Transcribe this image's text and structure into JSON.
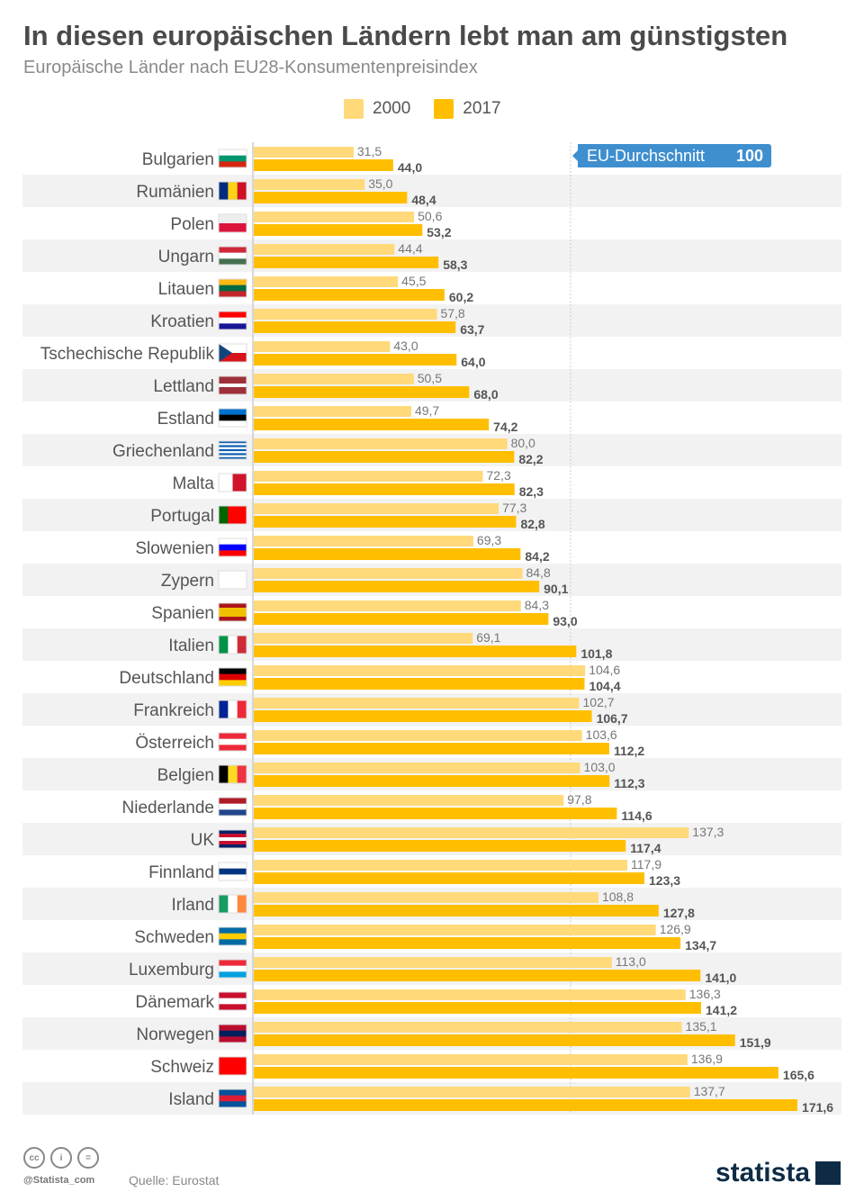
{
  "chart_data": {
    "type": "bar",
    "orientation": "horizontal",
    "title": "In diesen europäischen Ländern lebt man am günstigsten",
    "subtitle": "Europäische Länder nach EU28-Konsumentenpreisindex",
    "xlim": [
      0,
      175
    ],
    "grid": false,
    "legend_placement": "top",
    "reference_line": {
      "label": "EU-Durchschnitt",
      "value": 100,
      "value_label": "100"
    },
    "categories": [
      "Bulgarien",
      "Rumänien",
      "Polen",
      "Ungarn",
      "Litauen",
      "Kroatien",
      "Tschechische Republik",
      "Lettland",
      "Estland",
      "Griechenland",
      "Malta",
      "Portugal",
      "Slowenien",
      "Zypern",
      "Spanien",
      "Italien",
      "Deutschland",
      "Frankreich",
      "Österreich",
      "Belgien",
      "Niederlande",
      "UK",
      "Finnland",
      "Irland",
      "Schweden",
      "Luxemburg",
      "Dänemark",
      "Norwegen",
      "Schweiz",
      "Island"
    ],
    "series": [
      {
        "name": "2000",
        "color": "#ffd97a",
        "values": [
          31.5,
          35.0,
          50.6,
          44.4,
          45.5,
          57.8,
          43.0,
          50.5,
          49.7,
          80.0,
          72.3,
          77.3,
          69.3,
          84.8,
          84.3,
          69.1,
          104.6,
          102.7,
          103.6,
          103.0,
          97.8,
          137.3,
          117.9,
          108.8,
          126.9,
          113.0,
          136.3,
          135.1,
          136.9,
          137.7
        ],
        "labels": [
          "31,5",
          "35,0",
          "50,6",
          "44,4",
          "45,5",
          "57,8",
          "43,0",
          "50,5",
          "49,7",
          "80,0",
          "72,3",
          "77,3",
          "69,3",
          "84,8",
          "84,3",
          "69,1",
          "104,6",
          "102,7",
          "103,6",
          "103,0",
          "97,8",
          "137,3",
          "117,9",
          "108,8",
          "126,9",
          "113,0",
          "136,3",
          "135,1",
          "136,9",
          "137,7"
        ]
      },
      {
        "name": "2017",
        "color": "#ffbf00",
        "values": [
          44.0,
          48.4,
          53.2,
          58.3,
          60.2,
          63.7,
          64.0,
          68.0,
          74.2,
          82.2,
          82.3,
          82.8,
          84.2,
          90.1,
          93.0,
          101.8,
          104.4,
          106.7,
          112.2,
          112.3,
          114.6,
          117.4,
          123.3,
          127.8,
          134.7,
          141.0,
          141.2,
          151.9,
          165.6,
          171.6
        ],
        "labels": [
          "44,0",
          "48,4",
          "53,2",
          "58,3",
          "60,2",
          "63,7",
          "64,0",
          "68,0",
          "74,2",
          "82,2",
          "82,3",
          "82,8",
          "84,2",
          "90,1",
          "93,0",
          "101,8",
          "104,4",
          "106,7",
          "112,2",
          "112,3",
          "114,6",
          "117,4",
          "123,3",
          "127,8",
          "134,7",
          "141,0",
          "141,2",
          "151,9",
          "165,6",
          "171,6"
        ]
      }
    ]
  },
  "flags": [
    {
      "d": "h",
      "c": [
        "#ffffff",
        "#00966e",
        "#d62612"
      ]
    },
    {
      "d": "v",
      "c": [
        "#002b7f",
        "#fcd116",
        "#ce1126"
      ]
    },
    {
      "d": "h",
      "c": [
        "#eeeeee",
        "#dc143c"
      ]
    },
    {
      "d": "h",
      "c": [
        "#ce2939",
        "#ffffff",
        "#477050"
      ]
    },
    {
      "d": "h",
      "c": [
        "#fdb913",
        "#006a44",
        "#c1272d"
      ]
    },
    {
      "d": "h",
      "c": [
        "#ff0000",
        "#ffffff",
        "#171796"
      ]
    },
    {
      "d": "h",
      "c": [
        "#ffffff",
        "#d7141a"
      ],
      "tri": "#11457e"
    },
    {
      "d": "h",
      "c": [
        "#9e3039",
        "#9e3039",
        "#ffffff",
        "#9e3039",
        "#9e3039"
      ]
    },
    {
      "d": "h",
      "c": [
        "#0072ce",
        "#000000",
        "#ffffff"
      ]
    },
    {
      "d": "h",
      "c": [
        "#0d5eaf",
        "#ffffff",
        "#0d5eaf",
        "#ffffff",
        "#0d5eaf",
        "#ffffff",
        "#0d5eaf",
        "#ffffff",
        "#0d5eaf"
      ]
    },
    {
      "d": "v",
      "c": [
        "#ffffff",
        "#cf142b"
      ]
    },
    {
      "d": "v",
      "c": [
        "#006600",
        "#ff0000",
        "#ff0000"
      ]
    },
    {
      "d": "h",
      "c": [
        "#ffffff",
        "#0000ff",
        "#ff0000"
      ]
    },
    {
      "d": "h",
      "c": [
        "#ffffff",
        "#ffffff"
      ]
    },
    {
      "d": "h",
      "c": [
        "#aa151b",
        "#f1bf00",
        "#f1bf00",
        "#aa151b"
      ]
    },
    {
      "d": "v",
      "c": [
        "#009246",
        "#ffffff",
        "#ce2b37"
      ]
    },
    {
      "d": "h",
      "c": [
        "#000000",
        "#dd0000",
        "#ffce00"
      ]
    },
    {
      "d": "v",
      "c": [
        "#002395",
        "#ffffff",
        "#ed2939"
      ]
    },
    {
      "d": "h",
      "c": [
        "#ed2939",
        "#ffffff",
        "#ed2939"
      ]
    },
    {
      "d": "v",
      "c": [
        "#000000",
        "#fdda24",
        "#ef3340"
      ]
    },
    {
      "d": "h",
      "c": [
        "#ae1c28",
        "#ffffff",
        "#21468b"
      ]
    },
    {
      "d": "h",
      "c": [
        "#012169",
        "#c8102e",
        "#ffffff",
        "#c8102e",
        "#012169"
      ]
    },
    {
      "d": "h",
      "c": [
        "#ffffff",
        "#003580",
        "#ffffff"
      ]
    },
    {
      "d": "v",
      "c": [
        "#169b62",
        "#ffffff",
        "#ff883e"
      ]
    },
    {
      "d": "h",
      "c": [
        "#006aa7",
        "#fecc00",
        "#006aa7"
      ]
    },
    {
      "d": "h",
      "c": [
        "#ed2939",
        "#ffffff",
        "#00a1de"
      ]
    },
    {
      "d": "h",
      "c": [
        "#c8102e",
        "#ffffff",
        "#c8102e"
      ]
    },
    {
      "d": "h",
      "c": [
        "#ba0c2f",
        "#00205b",
        "#ba0c2f"
      ]
    },
    {
      "d": "h",
      "c": [
        "#ff0000",
        "#ff0000"
      ]
    },
    {
      "d": "h",
      "c": [
        "#02529c",
        "#dc1e35",
        "#02529c"
      ]
    }
  ],
  "footer": {
    "handle": "@Statista_com",
    "source": "Quelle: Eurostat",
    "logo": "statista"
  }
}
